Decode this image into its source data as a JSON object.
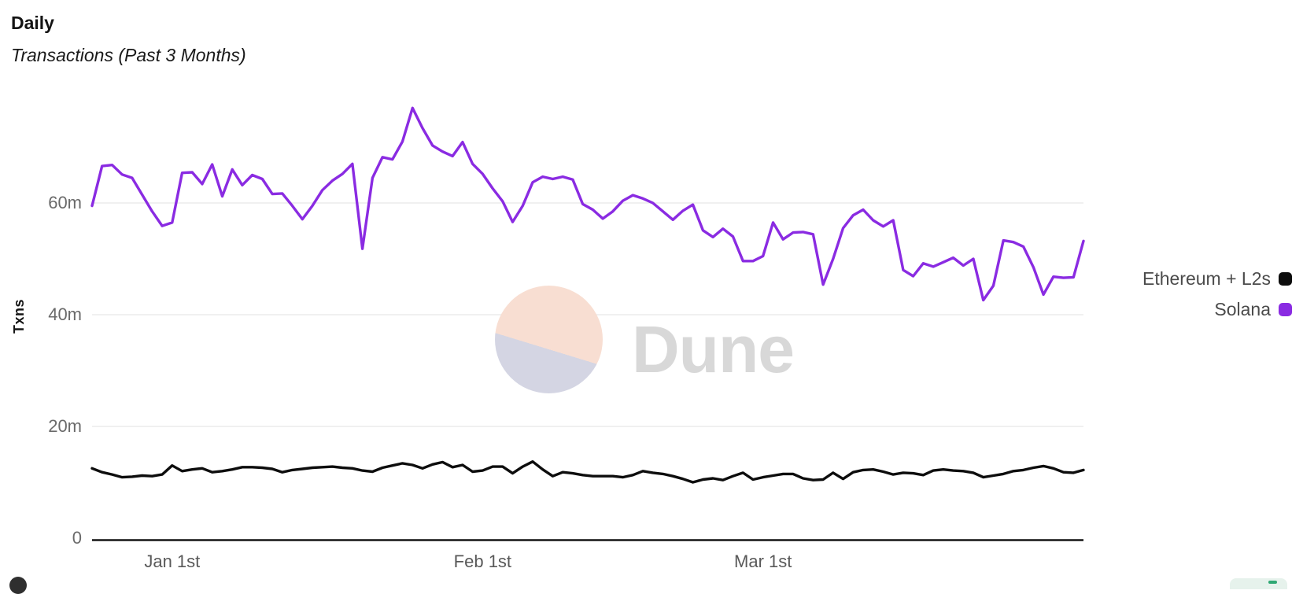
{
  "header": {
    "title": "Daily",
    "subtitle": "Transactions (Past 3 Months)"
  },
  "y_axis": {
    "label": "Txns",
    "tick_values": [
      0,
      20,
      40,
      60
    ],
    "tick_labels": [
      "0",
      "20m",
      "40m",
      "60m"
    ]
  },
  "x_axis": {
    "tick_labels": [
      "Jan 1st",
      "Feb 1st",
      "Mar 1st"
    ],
    "tick_indices": [
      8,
      39,
      67
    ]
  },
  "legend": [
    {
      "label": "Ethereum + L2s",
      "color": "#0d0d0d"
    },
    {
      "label": "Solana",
      "color": "#8A2BE2"
    }
  ],
  "watermark": {
    "text": "Dune"
  },
  "colors": {
    "grid": "#ececec",
    "axis": "#161616",
    "solana_purple": "#8A2BE2",
    "ethereum_black": "#0d0d0d"
  },
  "chart_data": {
    "type": "line",
    "title": "Daily Transactions (Past 3 Months)",
    "ylabel": "Txns",
    "xlabel": "",
    "x_unit": "day",
    "ylim": [
      0,
      80
    ],
    "y_ticks_millions": [
      0,
      20,
      40,
      60
    ],
    "x_tick_labels": [
      "Jan 1st",
      "Feb 1st",
      "Mar 1st"
    ],
    "x_tick_indices": [
      8,
      39,
      67
    ],
    "grid": "horizontal",
    "legend_position": "right",
    "unit": "millions of transactions",
    "series": [
      {
        "name": "Ethereum + L2s",
        "color": "#0d0d0d",
        "values": [
          12.5,
          11.8,
          11.4,
          10.9,
          11.0,
          11.2,
          11.1,
          11.4,
          13.0,
          12.0,
          12.3,
          12.5,
          11.8,
          12.0,
          12.3,
          12.7,
          12.7,
          12.6,
          12.4,
          11.8,
          12.2,
          12.4,
          12.6,
          12.7,
          12.8,
          12.6,
          12.5,
          12.1,
          11.9,
          12.6,
          13.0,
          13.4,
          13.1,
          12.5,
          13.2,
          13.6,
          12.7,
          13.1,
          11.9,
          12.1,
          12.8,
          12.8,
          11.6,
          12.8,
          13.7,
          12.3,
          11.1,
          11.8,
          11.6,
          11.3,
          11.1,
          11.1,
          11.1,
          10.9,
          11.3,
          12.0,
          11.7,
          11.5,
          11.1,
          10.6,
          10.0,
          10.5,
          10.7,
          10.4,
          11.1,
          11.7,
          10.5,
          10.9,
          11.2,
          11.5,
          11.5,
          10.7,
          10.4,
          10.5,
          11.7,
          10.6,
          11.8,
          12.2,
          12.3,
          11.9,
          11.4,
          11.7,
          11.6,
          11.3,
          12.1,
          12.3,
          12.1,
          12.0,
          11.7,
          10.9,
          11.2,
          11.5,
          12.0,
          12.2,
          12.6,
          12.9,
          12.5,
          11.8,
          11.7,
          12.2
        ]
      },
      {
        "name": "Solana",
        "color": "#8A2BE2",
        "values": [
          59.5,
          66.6,
          66.8,
          65.1,
          64.5,
          61.5,
          58.5,
          55.9,
          56.5,
          65.4,
          65.5,
          63.4,
          66.9,
          61.2,
          66.0,
          63.2,
          65.0,
          64.3,
          61.6,
          61.7,
          59.5,
          57.1,
          59.5,
          62.3,
          64.0,
          65.2,
          67.0,
          51.8,
          64.5,
          68.2,
          67.8,
          71.0,
          77.0,
          73.4,
          70.3,
          69.2,
          68.4,
          70.9,
          67.0,
          65.2,
          62.6,
          60.3,
          56.6,
          59.5,
          63.7,
          64.7,
          64.3,
          64.7,
          64.2,
          59.8,
          58.8,
          57.2,
          58.5,
          60.4,
          61.4,
          60.8,
          60.0,
          58.5,
          57.0,
          58.6,
          59.7,
          55.1,
          53.9,
          55.4,
          54.0,
          49.6,
          49.6,
          50.5,
          56.5,
          53.5,
          54.7,
          54.8,
          54.4,
          45.4,
          50.0,
          55.5,
          57.8,
          58.8,
          56.9,
          55.8,
          56.9,
          48.0,
          46.9,
          49.2,
          48.6,
          49.4,
          50.2,
          48.8,
          50.0,
          42.6,
          45.2,
          53.3,
          53.0,
          52.2,
          48.5,
          43.6,
          46.8,
          46.6,
          46.7,
          53.2
        ]
      }
    ]
  }
}
